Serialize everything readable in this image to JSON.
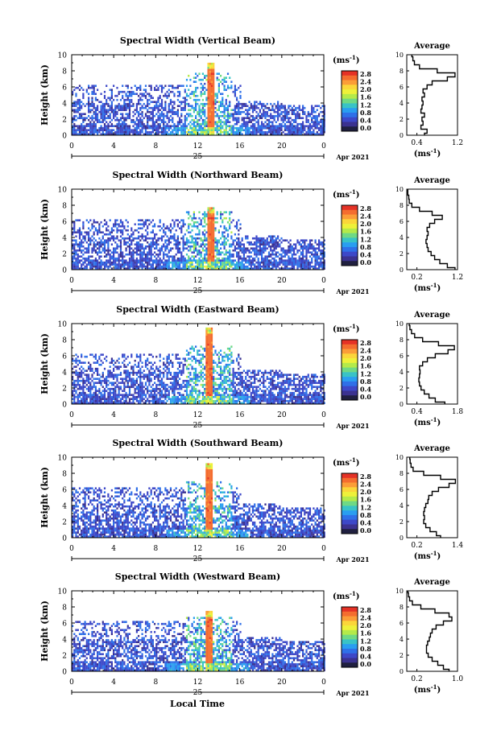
{
  "xlabel": "Local Time",
  "colorbar": {
    "unit_prefix": "(ms",
    "unit_exp": "-1",
    "unit_suffix": ")",
    "tick_labels": [
      "2.8",
      "2.4",
      "2.0",
      "1.6",
      "1.2",
      "0.8",
      "0.4",
      "0.0"
    ],
    "colors": [
      "#e53226",
      "#f46d2f",
      "#fb9d38",
      "#fbd63a",
      "#eef13a",
      "#b4ea4a",
      "#6fd985",
      "#39c3c6",
      "#2a9ef0",
      "#2f70e8",
      "#3d48c8",
      "#3b3290",
      "#202040"
    ]
  },
  "main_ylabel": "Height (km)",
  "main_yticks": [
    "0",
    "2",
    "4",
    "6",
    "8",
    "10"
  ],
  "main_xticks": [
    "0",
    "4",
    "8",
    "12",
    "16",
    "20",
    "0"
  ],
  "date_day": "25",
  "date_label": "Apr 2021",
  "profile_title": "Average",
  "profile_ylabel": "",
  "profile_unit_prefix": "(ms",
  "profile_unit_exp": "-1",
  "profile_unit_suffix": ")",
  "chart_data": [
    {
      "type": "heatmap",
      "title": "Spectral Width (Vertical Beam)",
      "xlabel": "",
      "ylabel": "Height (km)",
      "xlim": [
        0,
        24
      ],
      "ylim": [
        0,
        10
      ],
      "storm": {
        "start": 12.9,
        "end": 13.5,
        "core_top": 8.8
      },
      "cloud_top": 7.0,
      "profile": {
        "xlim": [
          0.2,
          1.2
        ],
        "xticks": [
          "0.4",
          "1.2"
        ],
        "heights": [
          0,
          0.5,
          1,
          1.5,
          2,
          2.5,
          3,
          3.5,
          4,
          4.5,
          5,
          5.5,
          6,
          6.5,
          7,
          7.5,
          8,
          8.5,
          9,
          9.5,
          10
        ],
        "values": [
          0.55,
          0.6,
          0.48,
          0.52,
          0.5,
          0.55,
          0.48,
          0.5,
          0.52,
          0.5,
          0.55,
          0.52,
          0.6,
          0.7,
          1.0,
          1.15,
          0.8,
          0.45,
          0.35,
          0.32,
          0.3
        ]
      }
    },
    {
      "type": "heatmap",
      "title": "Spectral Width (Northward Beam)",
      "xlabel": "",
      "ylabel": "Height (km)",
      "xlim": [
        0,
        24
      ],
      "ylim": [
        0,
        10
      ],
      "storm": {
        "start": 12.8,
        "end": 13.5,
        "core_top": 7.6
      },
      "cloud_top": 6.5,
      "profile": {
        "xlim": [
          0.2,
          1.2
        ],
        "xticks": [
          "0.2",
          "1.2"
        ],
        "heights": [
          0,
          0.5,
          1,
          1.5,
          2,
          2.5,
          3,
          3.5,
          4,
          4.5,
          5,
          5.5,
          6,
          6.5,
          7,
          7.5,
          8,
          8.5,
          9,
          9.5,
          10
        ],
        "values": [
          1.15,
          1.0,
          0.85,
          0.75,
          0.68,
          0.62,
          0.6,
          0.58,
          0.6,
          0.62,
          0.6,
          0.65,
          0.75,
          0.9,
          0.7,
          0.45,
          0.3,
          0.25,
          0.24,
          0.22,
          0.22
        ]
      }
    },
    {
      "type": "heatmap",
      "title": "Spectral Width (Eastward Beam)",
      "xlabel": "",
      "ylabel": "Height (km)",
      "xlim": [
        0,
        24
      ],
      "ylim": [
        0,
        10
      ],
      "storm": {
        "start": 12.7,
        "end": 13.4,
        "core_top": 9.3
      },
      "cloud_top": 6.6,
      "profile": {
        "xlim": [
          0.2,
          1.8
        ],
        "xticks": [
          "0.4",
          "1.8"
        ],
        "heights": [
          0,
          0.5,
          1,
          1.5,
          2,
          2.5,
          3,
          3.5,
          4,
          4.5,
          5,
          5.5,
          6,
          6.5,
          7,
          7.5,
          8,
          8.5,
          9,
          9.5,
          10
        ],
        "values": [
          1.4,
          1.1,
          0.9,
          0.75,
          0.65,
          0.6,
          0.58,
          0.6,
          0.62,
          0.6,
          0.7,
          0.85,
          1.1,
          1.5,
          1.7,
          1.2,
          0.7,
          0.45,
          0.35,
          0.3,
          0.28
        ]
      }
    },
    {
      "type": "heatmap",
      "title": "Spectral Width (Southward Beam)",
      "xlabel": "",
      "ylabel": "Height (km)",
      "xlim": [
        0,
        24
      ],
      "ylim": [
        0,
        10
      ],
      "storm": {
        "start": 12.6,
        "end": 13.4,
        "core_top": 9.2
      },
      "cloud_top": 6.3,
      "profile": {
        "xlim": [
          0.2,
          1.4
        ],
        "xticks": [
          "0.2",
          "1.4"
        ],
        "heights": [
          0,
          0.5,
          1,
          1.5,
          2,
          2.5,
          3,
          3.5,
          4,
          4.5,
          5,
          5.5,
          6,
          6.5,
          7,
          7.5,
          8,
          8.5,
          9,
          9.5,
          10
        ],
        "values": [
          1.0,
          0.9,
          0.75,
          0.65,
          0.6,
          0.62,
          0.6,
          0.62,
          0.65,
          0.7,
          0.72,
          0.8,
          0.95,
          1.2,
          1.35,
          1.0,
          0.6,
          0.35,
          0.3,
          0.28,
          0.27
        ]
      }
    },
    {
      "type": "heatmap",
      "title": "Spectral Width (Westward Beam)",
      "xlabel": "Local Time",
      "ylabel": "Height (km)",
      "xlim": [
        0,
        24
      ],
      "ylim": [
        0,
        10
      ],
      "storm": {
        "start": 12.6,
        "end": 13.4,
        "core_top": 7.4
      },
      "cloud_top": 6.0,
      "profile": {
        "xlim": [
          0.2,
          1.1
        ],
        "xticks": [
          "0.2",
          "1.0"
        ],
        "heights": [
          0,
          0.5,
          1,
          1.5,
          2,
          2.5,
          3,
          3.5,
          4,
          4.5,
          5,
          5.5,
          6,
          6.5,
          7,
          7.5,
          8,
          8.5,
          9,
          9.5,
          10
        ],
        "values": [
          0.95,
          0.85,
          0.75,
          0.65,
          0.58,
          0.55,
          0.55,
          0.57,
          0.6,
          0.62,
          0.65,
          0.72,
          0.85,
          1.0,
          0.95,
          0.7,
          0.45,
          0.3,
          0.25,
          0.23,
          0.22
        ]
      }
    }
  ]
}
